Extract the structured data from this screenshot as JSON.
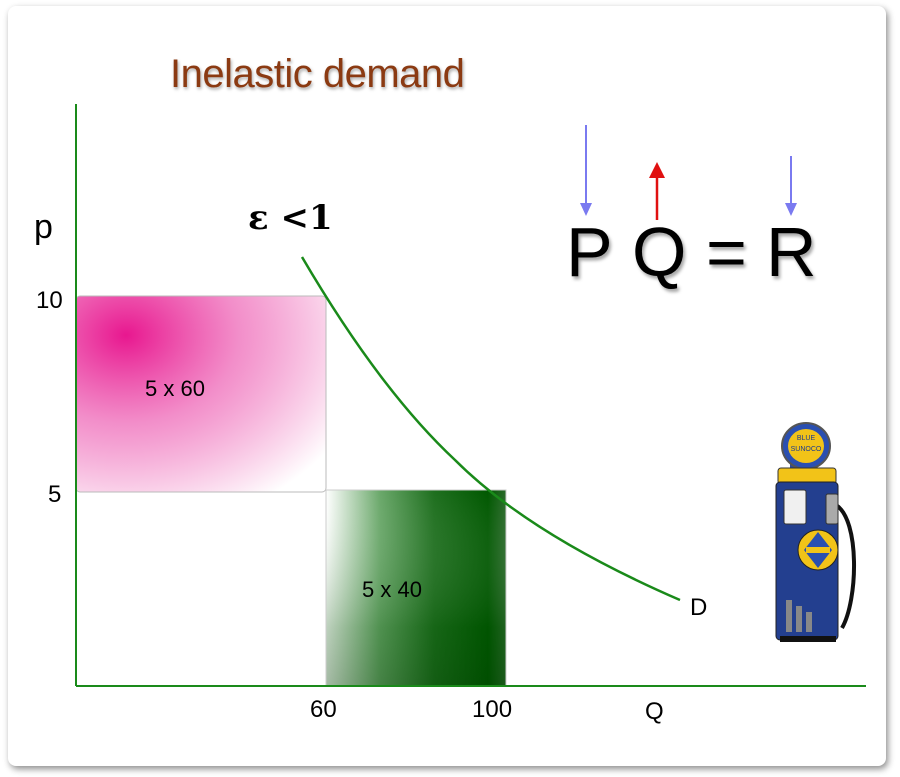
{
  "title": "Inelastic demand",
  "elasticity_label": "ε <1",
  "equation": {
    "p": "P",
    "q": "Q",
    "eq": "=",
    "r": "R"
  },
  "equation_arrows": {
    "p": "down",
    "q": "up",
    "r": "down"
  },
  "axes": {
    "y_label": "p",
    "x_label": "Q"
  },
  "y_ticks": [
    "10",
    "5"
  ],
  "x_ticks": [
    "60",
    "100"
  ],
  "curve_label": "D",
  "areas": [
    {
      "label": "5 x 60",
      "color": "#e8178f"
    },
    {
      "label": "5 x 40",
      "color": "#0a5c0a"
    }
  ],
  "colors": {
    "axis": "#1a8a1a",
    "curve": "#1a8a1a",
    "title": "#8b3a12",
    "arrow_down": "#7a7af0",
    "arrow_up": "#e01010"
  },
  "pump": {
    "sign_top": "BLUE",
    "sign_bottom": "SUNOCO",
    "icon": "gas-pump-icon"
  }
}
